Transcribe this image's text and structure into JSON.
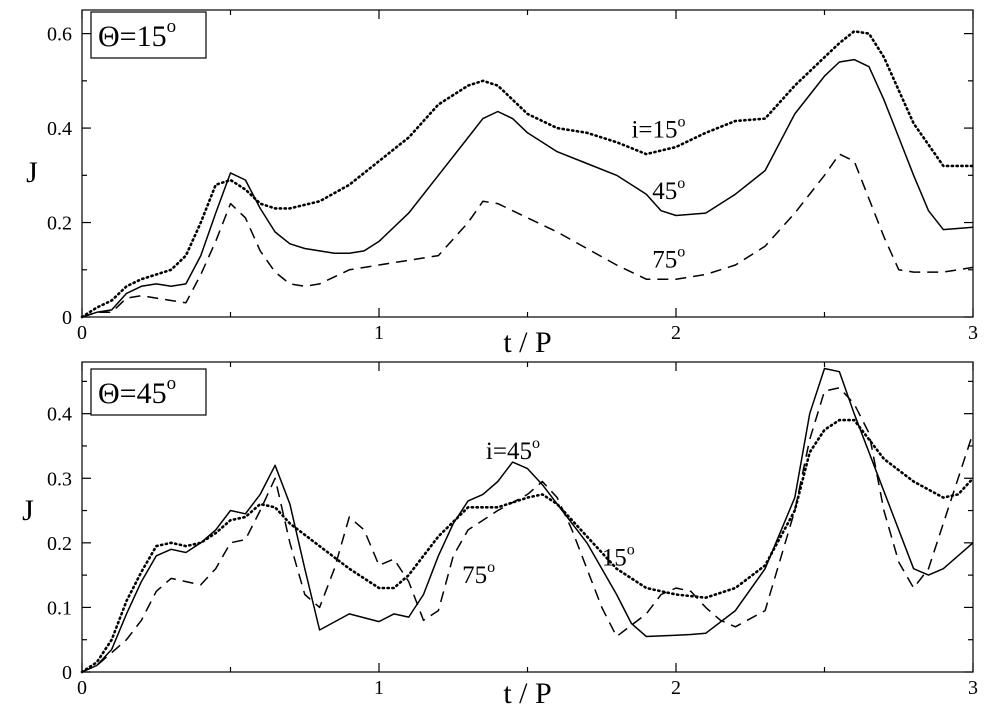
{
  "figure": {
    "shared_xlabel": "t / P"
  },
  "chart_data": [
    {
      "type": "line",
      "title": "Θ=15°",
      "title_text": "Θ=15",
      "title_sup": "o",
      "xlabel": "t / P",
      "ylabel": "J",
      "xlim": [
        0,
        3
      ],
      "ylim": [
        0,
        0.65
      ],
      "xticks": [
        0,
        1,
        2,
        3
      ],
      "xtick_labels": [
        "0",
        "1",
        "2",
        "3"
      ],
      "yticks": [
        0,
        0.2,
        0.4,
        0.6
      ],
      "ytick_labels": [
        "0",
        "0.2",
        "0.4",
        "0.6"
      ],
      "grid": false,
      "series": [
        {
          "name": "i=15°",
          "style": "dotted",
          "x": [
            0,
            0.05,
            0.1,
            0.15,
            0.2,
            0.25,
            0.3,
            0.35,
            0.4,
            0.45,
            0.5,
            0.55,
            0.6,
            0.65,
            0.7,
            0.8,
            0.9,
            1.0,
            1.1,
            1.2,
            1.3,
            1.35,
            1.4,
            1.5,
            1.6,
            1.7,
            1.8,
            1.9,
            2.0,
            2.1,
            2.2,
            2.3,
            2.4,
            2.5,
            2.55,
            2.6,
            2.65,
            2.7,
            2.8,
            2.9,
            3.0
          ],
          "y": [
            0,
            0.02,
            0.035,
            0.065,
            0.08,
            0.09,
            0.1,
            0.13,
            0.2,
            0.28,
            0.29,
            0.27,
            0.24,
            0.23,
            0.23,
            0.245,
            0.28,
            0.33,
            0.38,
            0.45,
            0.49,
            0.5,
            0.49,
            0.43,
            0.4,
            0.39,
            0.37,
            0.345,
            0.36,
            0.39,
            0.415,
            0.42,
            0.49,
            0.55,
            0.58,
            0.605,
            0.6,
            0.55,
            0.41,
            0.32,
            0.32
          ]
        },
        {
          "name": "45°",
          "style": "solid",
          "x": [
            0,
            0.05,
            0.1,
            0.15,
            0.2,
            0.25,
            0.3,
            0.35,
            0.4,
            0.45,
            0.5,
            0.55,
            0.6,
            0.65,
            0.7,
            0.75,
            0.8,
            0.85,
            0.9,
            0.95,
            1.0,
            1.1,
            1.2,
            1.3,
            1.35,
            1.4,
            1.45,
            1.5,
            1.6,
            1.7,
            1.8,
            1.9,
            1.95,
            2.0,
            2.1,
            2.2,
            2.3,
            2.4,
            2.5,
            2.55,
            2.6,
            2.65,
            2.7,
            2.75,
            2.8,
            2.85,
            2.9,
            3.0
          ],
          "y": [
            0,
            0.01,
            0.015,
            0.05,
            0.065,
            0.07,
            0.065,
            0.07,
            0.13,
            0.22,
            0.305,
            0.29,
            0.23,
            0.18,
            0.155,
            0.145,
            0.14,
            0.135,
            0.135,
            0.14,
            0.16,
            0.22,
            0.3,
            0.38,
            0.42,
            0.435,
            0.42,
            0.39,
            0.35,
            0.325,
            0.3,
            0.26,
            0.225,
            0.215,
            0.22,
            0.26,
            0.31,
            0.43,
            0.51,
            0.54,
            0.545,
            0.53,
            0.46,
            0.38,
            0.3,
            0.225,
            0.185,
            0.19
          ]
        },
        {
          "name": "75°",
          "style": "dashed",
          "x": [
            0,
            0.05,
            0.1,
            0.15,
            0.2,
            0.25,
            0.3,
            0.35,
            0.4,
            0.45,
            0.5,
            0.55,
            0.6,
            0.65,
            0.7,
            0.75,
            0.8,
            0.9,
            1.0,
            1.1,
            1.2,
            1.3,
            1.35,
            1.4,
            1.5,
            1.6,
            1.7,
            1.8,
            1.9,
            2.0,
            2.1,
            2.2,
            2.3,
            2.4,
            2.5,
            2.55,
            2.6,
            2.65,
            2.7,
            2.75,
            2.8,
            2.9,
            3.0
          ],
          "y": [
            0,
            0.01,
            0.01,
            0.04,
            0.045,
            0.04,
            0.035,
            0.03,
            0.09,
            0.16,
            0.24,
            0.21,
            0.14,
            0.095,
            0.07,
            0.065,
            0.07,
            0.1,
            0.11,
            0.12,
            0.13,
            0.2,
            0.245,
            0.24,
            0.21,
            0.18,
            0.145,
            0.11,
            0.08,
            0.08,
            0.09,
            0.11,
            0.15,
            0.22,
            0.3,
            0.345,
            0.33,
            0.25,
            0.17,
            0.1,
            0.095,
            0.095,
            0.105
          ]
        }
      ],
      "annotations": [
        {
          "text": "i=15",
          "sup": "o",
          "x": 1.85,
          "y": 0.38,
          "series": "i=15°"
        },
        {
          "text": "45",
          "sup": "o",
          "x": 1.92,
          "y": 0.25,
          "series": "45°"
        },
        {
          "text": "75",
          "sup": "o",
          "x": 1.92,
          "y": 0.105,
          "series": "75°"
        }
      ]
    },
    {
      "type": "line",
      "title": "Θ=45°",
      "title_text": "Θ=45",
      "title_sup": "o",
      "xlabel": "t / P",
      "ylabel": "J",
      "xlim": [
        0,
        3
      ],
      "ylim": [
        0,
        0.48
      ],
      "xticks": [
        0,
        1,
        2,
        3
      ],
      "xtick_labels": [
        "0",
        "1",
        "2",
        "3"
      ],
      "yticks": [
        0,
        0.1,
        0.2,
        0.3,
        0.4
      ],
      "ytick_labels": [
        "0",
        "0.1",
        "0.2",
        "0.3",
        "0.4"
      ],
      "grid": false,
      "series": [
        {
          "name": "i=45°",
          "style": "solid",
          "x": [
            0,
            0.05,
            0.1,
            0.15,
            0.2,
            0.25,
            0.3,
            0.35,
            0.4,
            0.45,
            0.5,
            0.55,
            0.6,
            0.65,
            0.7,
            0.75,
            0.8,
            0.9,
            1.0,
            1.05,
            1.1,
            1.15,
            1.2,
            1.25,
            1.3,
            1.35,
            1.4,
            1.45,
            1.5,
            1.55,
            1.6,
            1.7,
            1.8,
            1.85,
            1.9,
            2.0,
            2.05,
            2.1,
            2.2,
            2.3,
            2.4,
            2.45,
            2.5,
            2.55,
            2.6,
            2.7,
            2.8,
            2.85,
            2.9,
            3.0
          ],
          "y": [
            0,
            0.01,
            0.035,
            0.09,
            0.14,
            0.18,
            0.19,
            0.185,
            0.2,
            0.22,
            0.25,
            0.245,
            0.275,
            0.32,
            0.26,
            0.16,
            0.065,
            0.09,
            0.078,
            0.09,
            0.085,
            0.12,
            0.18,
            0.23,
            0.265,
            0.275,
            0.295,
            0.325,
            0.315,
            0.29,
            0.26,
            0.2,
            0.12,
            0.075,
            0.055,
            0.057,
            0.058,
            0.06,
            0.095,
            0.16,
            0.27,
            0.4,
            0.47,
            0.465,
            0.4,
            0.28,
            0.16,
            0.15,
            0.16,
            0.2
          ]
        },
        {
          "name": "15°",
          "style": "dotted",
          "x": [
            0,
            0.05,
            0.1,
            0.15,
            0.2,
            0.25,
            0.3,
            0.35,
            0.4,
            0.45,
            0.5,
            0.55,
            0.6,
            0.65,
            0.7,
            0.8,
            0.9,
            1.0,
            1.05,
            1.1,
            1.2,
            1.3,
            1.4,
            1.5,
            1.55,
            1.6,
            1.7,
            1.8,
            1.9,
            2.0,
            2.1,
            2.2,
            2.3,
            2.4,
            2.45,
            2.5,
            2.55,
            2.6,
            2.7,
            2.8,
            2.9,
            2.95,
            3.0
          ],
          "y": [
            0,
            0.015,
            0.05,
            0.11,
            0.155,
            0.195,
            0.2,
            0.195,
            0.2,
            0.215,
            0.235,
            0.24,
            0.26,
            0.255,
            0.23,
            0.195,
            0.16,
            0.13,
            0.13,
            0.15,
            0.21,
            0.255,
            0.255,
            0.27,
            0.275,
            0.26,
            0.21,
            0.16,
            0.13,
            0.12,
            0.115,
            0.13,
            0.165,
            0.25,
            0.34,
            0.375,
            0.39,
            0.39,
            0.33,
            0.295,
            0.27,
            0.275,
            0.3
          ]
        },
        {
          "name": "75°",
          "style": "dashed",
          "x": [
            0,
            0.05,
            0.1,
            0.15,
            0.2,
            0.25,
            0.3,
            0.35,
            0.4,
            0.45,
            0.5,
            0.55,
            0.6,
            0.65,
            0.7,
            0.75,
            0.8,
            0.85,
            0.9,
            0.95,
            1.0,
            1.05,
            1.1,
            1.15,
            1.2,
            1.25,
            1.3,
            1.4,
            1.5,
            1.55,
            1.6,
            1.65,
            1.7,
            1.75,
            1.8,
            1.9,
            1.95,
            2.0,
            2.05,
            2.1,
            2.15,
            2.2,
            2.3,
            2.4,
            2.45,
            2.5,
            2.55,
            2.6,
            2.65,
            2.7,
            2.75,
            2.8,
            2.85,
            2.9,
            3.0
          ],
          "y": [
            0,
            0.01,
            0.03,
            0.05,
            0.08,
            0.125,
            0.145,
            0.14,
            0.135,
            0.16,
            0.2,
            0.205,
            0.25,
            0.3,
            0.2,
            0.12,
            0.1,
            0.16,
            0.24,
            0.22,
            0.165,
            0.175,
            0.14,
            0.08,
            0.095,
            0.18,
            0.22,
            0.25,
            0.275,
            0.295,
            0.27,
            0.22,
            0.16,
            0.1,
            0.055,
            0.09,
            0.12,
            0.13,
            0.125,
            0.1,
            0.08,
            0.07,
            0.095,
            0.25,
            0.36,
            0.435,
            0.44,
            0.415,
            0.37,
            0.25,
            0.17,
            0.13,
            0.16,
            0.23,
            0.37
          ]
        }
      ],
      "annotations": [
        {
          "text": "i=45",
          "sup": "o",
          "x": 1.36,
          "y": 0.33,
          "series": "i=45°"
        },
        {
          "text": "15",
          "sup": "o",
          "x": 1.75,
          "y": 0.165,
          "series": "15°"
        },
        {
          "text": "75",
          "sup": "o",
          "x": 1.28,
          "y": 0.138,
          "series": "75°"
        }
      ]
    }
  ]
}
